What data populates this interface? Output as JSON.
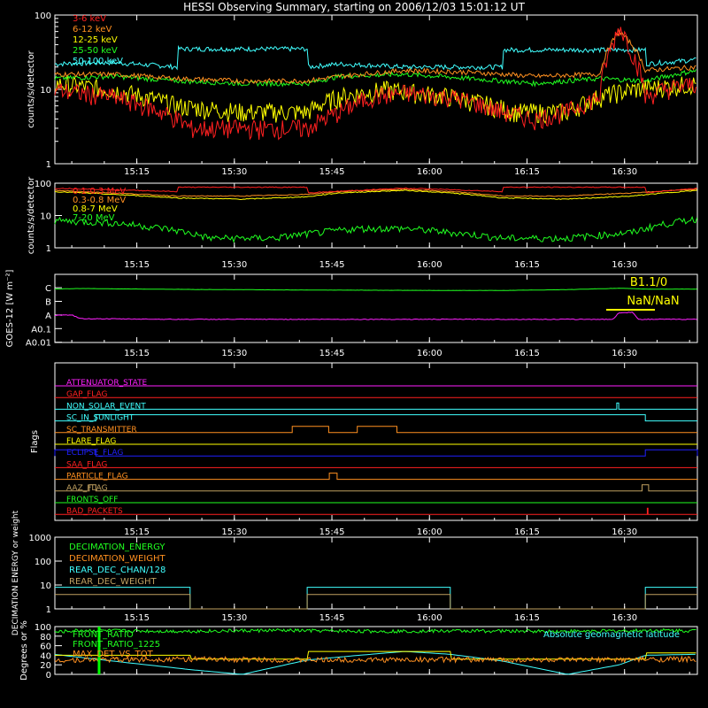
{
  "title": "HESSI Observing Summary, starting on 2006/12/03 15:01:12 UT",
  "colors": {
    "background": "#000000",
    "axis": "#ffffff",
    "red": "#ff2020",
    "orange": "#ff9020",
    "yellow": "#ffff00",
    "green": "#20ff20",
    "cyan": "#40ffff",
    "magenta": "#ff20ff",
    "blue": "#2020ff",
    "olive": "#c0a060",
    "brightgreen": "#00ff00"
  },
  "x_axis": {
    "tmin_min": 1.2,
    "tmax_min": 100,
    "ticks": [
      {
        "t": 13.8,
        "label": "15:15"
      },
      {
        "t": 28.8,
        "label": "15:30"
      },
      {
        "t": 43.8,
        "label": "15:45"
      },
      {
        "t": 58.8,
        "label": "16:00"
      },
      {
        "t": 73.8,
        "label": "16:15"
      },
      {
        "t": 88.8,
        "label": "16:30"
      }
    ]
  },
  "chart_data": [
    {
      "type": "line",
      "name": "panel1",
      "ylabel": "counts/s/detector",
      "yscale": "log",
      "ylim": [
        1,
        100
      ],
      "yticks": [
        "1",
        "10",
        "100"
      ],
      "legend": [
        "3-6 keV",
        "6-12 keV",
        "12-25 keV",
        "25-50 keV",
        "50-100 keV"
      ],
      "series": [
        {
          "name": "3-6 keV",
          "color": "red",
          "x": [
            1,
            5,
            10,
            15,
            20,
            22,
            30,
            40,
            45,
            50,
            55,
            62,
            70,
            75,
            80,
            85,
            87,
            88,
            90,
            92,
            95,
            100
          ],
          "y": [
            10,
            9,
            8,
            6,
            4,
            3,
            3,
            3,
            5,
            8,
            9,
            8,
            5,
            4,
            5,
            8,
            40,
            70,
            30,
            8,
            10,
            12
          ]
        },
        {
          "name": "6-12 keV",
          "color": "orange",
          "x": [
            1,
            10,
            20,
            30,
            40,
            45,
            55,
            65,
            75,
            85,
            88,
            92,
            100
          ],
          "y": [
            16,
            16,
            14,
            13,
            13,
            15,
            18,
            17,
            15,
            16,
            60,
            18,
            20
          ]
        },
        {
          "name": "12-25 keV",
          "color": "yellow",
          "x": [
            1,
            10,
            20,
            30,
            40,
            45,
            52,
            62,
            72,
            80,
            85,
            90,
            100
          ],
          "y": [
            12,
            10,
            6,
            5,
            5,
            8,
            10,
            8,
            5,
            5,
            8,
            10,
            12
          ]
        },
        {
          "name": "25-50 keV",
          "color": "green",
          "x": [
            1,
            10,
            20,
            30,
            40,
            45,
            55,
            65,
            75,
            85,
            92,
            100
          ],
          "y": [
            14,
            15,
            13,
            12,
            12,
            15,
            16,
            14,
            12,
            14,
            13,
            18
          ]
        },
        {
          "name": "50-100 keV",
          "color": "cyan",
          "x": [
            1,
            10,
            20,
            20.1,
            40,
            40.1,
            45,
            55,
            65,
            70,
            70.1,
            92,
            92.1,
            100
          ],
          "y": [
            22,
            23,
            20,
            35,
            35,
            20,
            22,
            20,
            20,
            20,
            34,
            34,
            22,
            25
          ]
        }
      ]
    },
    {
      "type": "line",
      "name": "panel2",
      "ylabel": "counts/s/detector",
      "yscale": "log",
      "ylim": [
        1,
        100
      ],
      "yticks": [
        "1",
        "10",
        "100"
      ],
      "legend": [
        "0.1-0.3 MeV",
        "0.3-0.8 MeV",
        "0.8-7 MeV",
        "7-20 MeV"
      ],
      "series": [
        {
          "name": "0.1-0.3 MeV",
          "color": "red",
          "x": [
            1,
            20,
            20.1,
            40,
            40.1,
            55,
            70,
            70.1,
            92,
            92.1,
            100
          ],
          "y": [
            70,
            55,
            75,
            75,
            50,
            70,
            55,
            75,
            75,
            50,
            70
          ]
        },
        {
          "name": "0.3-0.8 MeV",
          "color": "orange",
          "x": [
            1,
            10,
            20,
            30,
            40,
            45,
            55,
            62,
            70,
            80,
            90,
            100
          ],
          "y": [
            60,
            50,
            40,
            40,
            45,
            55,
            65,
            55,
            40,
            40,
            50,
            65
          ]
        },
        {
          "name": "0.8-7 MeV",
          "color": "yellow",
          "x": [
            1,
            10,
            20,
            30,
            40,
            45,
            55,
            62,
            70,
            80,
            90,
            100
          ],
          "y": [
            55,
            45,
            35,
            32,
            38,
            50,
            60,
            50,
            35,
            32,
            40,
            60
          ]
        },
        {
          "name": "7-20 MeV",
          "color": "green",
          "x": [
            1,
            10,
            18,
            25,
            35,
            42,
            48,
            55,
            62,
            70,
            80,
            90,
            100
          ],
          "y": [
            7,
            6,
            4,
            2,
            2,
            3,
            4,
            4,
            3,
            2,
            2,
            3,
            8
          ]
        }
      ]
    },
    {
      "type": "line",
      "name": "goes",
      "ylabel": "GOES-12 [W m⁻²]",
      "yticks": [
        "A0.01",
        "A0.1",
        "A",
        "B",
        "C"
      ],
      "annotation_top": "B1.1/0",
      "annotation_bottom": "NaN/NaN",
      "series": [
        {
          "name": "goes-long",
          "color": "green",
          "x": [
            1,
            5,
            20,
            40,
            60,
            70,
            80,
            88,
            92,
            100
          ],
          "y": [
            3.92,
            3.96,
            3.9,
            3.85,
            3.82,
            3.82,
            3.88,
            3.98,
            3.92,
            3.92
          ]
        },
        {
          "name": "goes-short",
          "color": "magenta",
          "x": [
            1,
            4,
            5,
            20,
            60,
            87,
            88,
            90,
            91,
            100
          ],
          "y": [
            2.0,
            2.0,
            1.75,
            1.7,
            1.7,
            1.7,
            2.2,
            2.2,
            1.7,
            1.7
          ]
        }
      ]
    },
    {
      "type": "line",
      "name": "flags",
      "ylabel": "Flags",
      "rows": [
        {
          "label": "ATTENUATOR_STATE",
          "color": "magenta",
          "segments": []
        },
        {
          "label": "GAP_FLAG",
          "color": "red",
          "segments": []
        },
        {
          "label": "NON_SOLAR_EVENT",
          "color": "cyan",
          "segments": [
            [
              87.6,
              87.9
            ]
          ]
        },
        {
          "label": "SC_IN_SUNLIGHT",
          "color": "cyan",
          "segments": [
            [
              7.5,
              92.0
            ]
          ]
        },
        {
          "label": "SC_TRANSMITTER",
          "color": "orange",
          "segments": [
            [
              37.7,
              43.3
            ],
            [
              47.7,
              53.8
            ]
          ]
        },
        {
          "label": "FLARE_FLAG",
          "color": "yellow",
          "segments": []
        },
        {
          "label": "ECLIPSE_FLAG",
          "color": "blue",
          "segments": [
            [
              1.2,
              7.5
            ],
            [
              92.0,
              100
            ]
          ]
        },
        {
          "label": "SAA_FLAG",
          "color": "red",
          "segments": []
        },
        {
          "label": "PARTICLE_FLAG",
          "color": "orange",
          "segments": [
            [
              43.4,
              44.6
            ]
          ]
        },
        {
          "label": "AAZ_FLAG",
          "color": "olive",
          "segments": [
            [
              6.5,
              7.5
            ],
            [
              91.5,
              92.5
            ]
          ]
        },
        {
          "label": "FRONTS_OFF",
          "color": "green",
          "segments": []
        },
        {
          "label": "BAD_PACKETS",
          "color": "red",
          "segments": [
            [
              92.3,
              92.4
            ]
          ]
        }
      ]
    },
    {
      "type": "line",
      "name": "decimation",
      "ylabel": "DECIMATION ENERGY or weight",
      "yscale": "log",
      "ylim": [
        1,
        1000
      ],
      "yticks": [
        "1",
        "10",
        "100",
        "1000"
      ],
      "legend": [
        "DECIMATION_ENERGY",
        "DECIMATION_WEIGHT",
        "REAR_DEC_CHAN/128",
        "REAR_DEC_WEIGHT"
      ],
      "series": [
        {
          "name": "REAR_DEC_CHAN/128",
          "color": "cyan",
          "x": [
            1.2,
            22,
            22,
            40,
            40,
            62,
            62,
            92,
            92,
            100
          ],
          "y": [
            8,
            8,
            1,
            1,
            8,
            8,
            1,
            1,
            8,
            8
          ]
        },
        {
          "name": "REAR_DEC_WEIGHT",
          "color": "olive",
          "x": [
            1.2,
            22,
            22,
            40,
            40,
            62,
            62,
            92,
            92,
            100
          ],
          "y": [
            4,
            4,
            1,
            1,
            4,
            4,
            1,
            1,
            4,
            4
          ]
        }
      ]
    },
    {
      "type": "line",
      "name": "ratio",
      "ylabel": "Degrees or %",
      "ylim": [
        0,
        100
      ],
      "yticks": [
        "0",
        "20",
        "40",
        "60",
        "80",
        "100"
      ],
      "legend": [
        "FRONT_RATIO",
        "FRONT_RATIO_1225",
        "MAX_DET_VS_TOT"
      ],
      "annotation": "Absolute geomagnetic latitude",
      "series": [
        {
          "name": "Absolute geomagnetic latitude",
          "color": "cyan",
          "x": [
            1,
            10,
            22,
            30,
            40,
            48,
            55,
            62,
            70,
            80,
            88,
            92,
            100
          ],
          "y": [
            42,
            28,
            10,
            0,
            30,
            40,
            48,
            42,
            28,
            0,
            20,
            40,
            42
          ]
        },
        {
          "name": "MAX_DET_VS_TOT",
          "color": "yellow",
          "x": [
            1,
            22,
            22.1,
            40,
            40.1,
            62,
            62.1,
            92,
            92.1,
            100
          ],
          "y": [
            40,
            40,
            32,
            32,
            48,
            48,
            32,
            32,
            45,
            45
          ]
        },
        {
          "name": "FRONT_RATIO",
          "color": "green",
          "x": [
            1,
            5,
            20,
            35,
            50,
            65,
            80,
            95,
            100
          ],
          "y": [
            88,
            92,
            90,
            92,
            90,
            91,
            90,
            92,
            91
          ]
        },
        {
          "name": "FRONT_RATIO_1225",
          "color": "orange",
          "x": [
            1,
            20,
            40,
            60,
            80,
            100
          ],
          "y": [
            30,
            32,
            30,
            31,
            30,
            32
          ]
        }
      ]
    }
  ]
}
